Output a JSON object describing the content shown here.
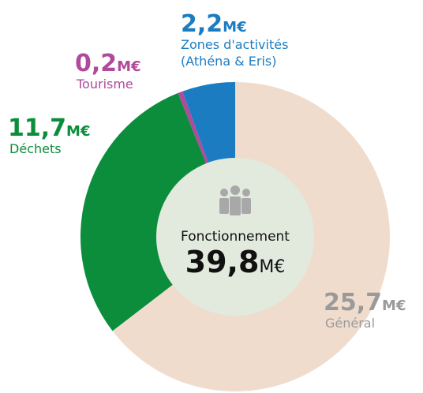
{
  "chart_data": {
    "type": "donut",
    "categories": [
      "Général",
      "Déchets",
      "Tourisme",
      "Zones d'activités (Athéna & Eris)"
    ],
    "category_lines": [
      [
        "Général"
      ],
      [
        "Déchets"
      ],
      [
        "Tourisme"
      ],
      [
        "Zones d'activités",
        "(Athéna & Eris)"
      ]
    ],
    "values": [
      25.7,
      11.7,
      0.2,
      2.2
    ],
    "value_labels": [
      "25,7",
      "11,7",
      "0,2",
      "2,2"
    ],
    "unit": "M€",
    "colors": [
      "#f0dccd",
      "#0b8d3b",
      "#b04a9b",
      "#1b7cc2"
    ],
    "label_colors": [
      "#9a9a9a",
      "#0b8d3b",
      "#b04a9b",
      "#1b7cc2"
    ],
    "center_title": "Fonctionnement",
    "center_value_label": "39,8"
  }
}
